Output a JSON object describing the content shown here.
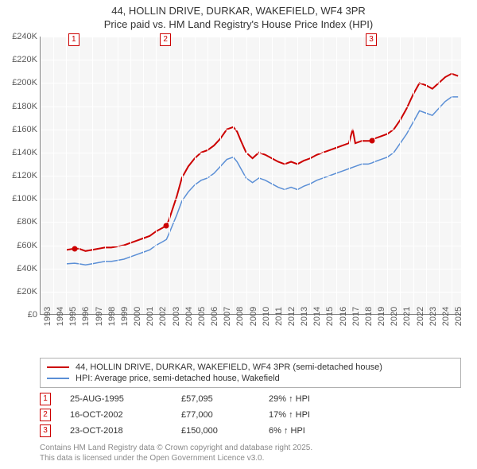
{
  "title_line1": "44, HOLLIN DRIVE, DURKAR, WAKEFIELD, WF4 3PR",
  "title_line2": "Price paid vs. HM Land Registry's House Price Index (HPI)",
  "chart": {
    "type": "line",
    "background_color": "#f6f6f6",
    "grid_color": "#ffffff",
    "axis_color": "#808080",
    "label_color": "#5a5a5a",
    "label_fontsize": 11,
    "xlim": [
      1993,
      2025.8
    ],
    "ylim": [
      0,
      240000
    ],
    "ytick_step": 20000,
    "yticks": [
      "£0",
      "£20K",
      "£40K",
      "£60K",
      "£80K",
      "£100K",
      "£120K",
      "£140K",
      "£160K",
      "£180K",
      "£200K",
      "£220K",
      "£240K"
    ],
    "xticks": [
      1993,
      1994,
      1995,
      1996,
      1997,
      1998,
      1999,
      2000,
      2001,
      2002,
      2003,
      2004,
      2005,
      2006,
      2007,
      2008,
      2009,
      2010,
      2011,
      2012,
      2013,
      2014,
      2015,
      2016,
      2017,
      2018,
      2019,
      2020,
      2021,
      2022,
      2023,
      2024,
      2025
    ],
    "series": [
      {
        "name": "price_paid",
        "color": "#cc0000",
        "line_width": 2,
        "points": [
          [
            1995.0,
            56000
          ],
          [
            1995.65,
            57095
          ],
          [
            1996.0,
            57000
          ],
          [
            1996.5,
            55000
          ],
          [
            1997.0,
            56000
          ],
          [
            1997.5,
            57000
          ],
          [
            1998.0,
            58000
          ],
          [
            1998.5,
            58000
          ],
          [
            1999.0,
            59000
          ],
          [
            1999.5,
            60000
          ],
          [
            2000.0,
            62000
          ],
          [
            2000.5,
            64000
          ],
          [
            2001.0,
            66000
          ],
          [
            2001.5,
            68000
          ],
          [
            2002.0,
            72000
          ],
          [
            2002.5,
            75000
          ],
          [
            2002.8,
            77000
          ],
          [
            2003.0,
            82000
          ],
          [
            2003.3,
            92000
          ],
          [
            2003.6,
            102000
          ],
          [
            2004.0,
            118000
          ],
          [
            2004.5,
            128000
          ],
          [
            2005.0,
            135000
          ],
          [
            2005.5,
            140000
          ],
          [
            2006.0,
            142000
          ],
          [
            2006.5,
            146000
          ],
          [
            2007.0,
            152000
          ],
          [
            2007.5,
            160000
          ],
          [
            2008.0,
            162000
          ],
          [
            2008.3,
            158000
          ],
          [
            2008.6,
            150000
          ],
          [
            2009.0,
            140000
          ],
          [
            2009.5,
            135000
          ],
          [
            2010.0,
            140000
          ],
          [
            2010.5,
            138000
          ],
          [
            2011.0,
            135000
          ],
          [
            2011.5,
            132000
          ],
          [
            2012.0,
            130000
          ],
          [
            2012.5,
            132000
          ],
          [
            2013.0,
            130000
          ],
          [
            2013.5,
            133000
          ],
          [
            2014.0,
            135000
          ],
          [
            2014.5,
            138000
          ],
          [
            2015.0,
            140000
          ],
          [
            2015.5,
            142000
          ],
          [
            2016.0,
            144000
          ],
          [
            2016.5,
            146000
          ],
          [
            2017.0,
            148000
          ],
          [
            2017.3,
            160000
          ],
          [
            2017.5,
            148000
          ],
          [
            2018.0,
            150000
          ],
          [
            2018.5,
            150000
          ],
          [
            2018.8,
            150000
          ],
          [
            2019.0,
            152000
          ],
          [
            2019.5,
            154000
          ],
          [
            2020.0,
            156000
          ],
          [
            2020.5,
            160000
          ],
          [
            2021.0,
            168000
          ],
          [
            2021.5,
            178000
          ],
          [
            2022.0,
            190000
          ],
          [
            2022.5,
            200000
          ],
          [
            2023.0,
            198000
          ],
          [
            2023.5,
            195000
          ],
          [
            2024.0,
            200000
          ],
          [
            2024.5,
            205000
          ],
          [
            2025.0,
            208000
          ],
          [
            2025.5,
            206000
          ]
        ]
      },
      {
        "name": "hpi",
        "color": "#5b8fd6",
        "line_width": 1.5,
        "points": [
          [
            1995.0,
            44000
          ],
          [
            1995.65,
            44500
          ],
          [
            1996.0,
            44000
          ],
          [
            1996.5,
            43000
          ],
          [
            1997.0,
            44000
          ],
          [
            1997.5,
            45000
          ],
          [
            1998.0,
            46000
          ],
          [
            1998.5,
            46000
          ],
          [
            1999.0,
            47000
          ],
          [
            1999.5,
            48000
          ],
          [
            2000.0,
            50000
          ],
          [
            2000.5,
            52000
          ],
          [
            2001.0,
            54000
          ],
          [
            2001.5,
            56000
          ],
          [
            2002.0,
            60000
          ],
          [
            2002.5,
            63000
          ],
          [
            2002.8,
            65000
          ],
          [
            2003.0,
            70000
          ],
          [
            2003.3,
            78000
          ],
          [
            2003.6,
            86000
          ],
          [
            2004.0,
            98000
          ],
          [
            2004.5,
            106000
          ],
          [
            2005.0,
            112000
          ],
          [
            2005.5,
            116000
          ],
          [
            2006.0,
            118000
          ],
          [
            2006.5,
            122000
          ],
          [
            2007.0,
            128000
          ],
          [
            2007.5,
            134000
          ],
          [
            2008.0,
            136000
          ],
          [
            2008.3,
            132000
          ],
          [
            2008.6,
            126000
          ],
          [
            2009.0,
            118000
          ],
          [
            2009.5,
            114000
          ],
          [
            2010.0,
            118000
          ],
          [
            2010.5,
            116000
          ],
          [
            2011.0,
            113000
          ],
          [
            2011.5,
            110000
          ],
          [
            2012.0,
            108000
          ],
          [
            2012.5,
            110000
          ],
          [
            2013.0,
            108000
          ],
          [
            2013.5,
            111000
          ],
          [
            2014.0,
            113000
          ],
          [
            2014.5,
            116000
          ],
          [
            2015.0,
            118000
          ],
          [
            2015.5,
            120000
          ],
          [
            2016.0,
            122000
          ],
          [
            2016.5,
            124000
          ],
          [
            2017.0,
            126000
          ],
          [
            2017.5,
            128000
          ],
          [
            2018.0,
            130000
          ],
          [
            2018.5,
            130000
          ],
          [
            2018.8,
            131000
          ],
          [
            2019.0,
            132000
          ],
          [
            2019.5,
            134000
          ],
          [
            2020.0,
            136000
          ],
          [
            2020.5,
            140000
          ],
          [
            2021.0,
            148000
          ],
          [
            2021.5,
            156000
          ],
          [
            2022.0,
            166000
          ],
          [
            2022.5,
            176000
          ],
          [
            2023.0,
            174000
          ],
          [
            2023.5,
            172000
          ],
          [
            2024.0,
            178000
          ],
          [
            2024.5,
            184000
          ],
          [
            2025.0,
            188000
          ],
          [
            2025.5,
            188000
          ]
        ]
      }
    ],
    "markers": [
      {
        "id": "1",
        "x": 1995.65,
        "y": 57095
      },
      {
        "id": "2",
        "x": 2002.79,
        "y": 77000
      },
      {
        "id": "3",
        "x": 2018.81,
        "y": 150000
      }
    ]
  },
  "legend": {
    "border_color": "#b0b0b0",
    "items": [
      {
        "color": "#cc0000",
        "width": 2,
        "label": "44, HOLLIN DRIVE, DURKAR, WAKEFIELD, WF4 3PR (semi-detached house)"
      },
      {
        "color": "#5b8fd6",
        "width": 1.5,
        "label": "HPI: Average price, semi-detached house, Wakefield"
      }
    ]
  },
  "sales": [
    {
      "id": "1",
      "date": "25-AUG-1995",
      "price": "£57,095",
      "hpi": "29% ↑ HPI"
    },
    {
      "id": "2",
      "date": "16-OCT-2002",
      "price": "£77,000",
      "hpi": "17% ↑ HPI"
    },
    {
      "id": "3",
      "date": "23-OCT-2018",
      "price": "£150,000",
      "hpi": "6% ↑ HPI"
    }
  ],
  "attribution_line1": "Contains HM Land Registry data © Crown copyright and database right 2025.",
  "attribution_line2": "This data is licensed under the Open Government Licence v3.0."
}
